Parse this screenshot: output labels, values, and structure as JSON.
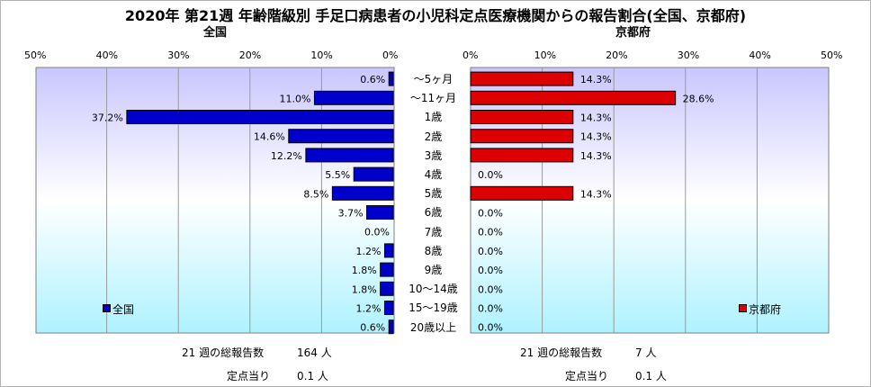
{
  "title": "2020年 第21週 年齢階級別 手足口病患者の小児科定点医療機関からの報告割合(全国、京都府)",
  "categories": [
    "～5ヶ月",
    "～11ヶ月",
    "1歳",
    "2歳",
    "3歳",
    "4歳",
    "5歳",
    "6歳",
    "7歳",
    "8歳",
    "9歳",
    "10～14歳",
    "15～19歳",
    "20歳以上"
  ],
  "left": {
    "subtitle": "全国",
    "ticks": [
      "50%",
      "40%",
      "30%",
      "20%",
      "10%",
      "0%"
    ],
    "legend": "全国",
    "color": "#0000cc"
  },
  "right": {
    "subtitle": "京都府",
    "ticks": [
      "0%",
      "10%",
      "20%",
      "30%",
      "40%",
      "50%"
    ],
    "legend": "京都府",
    "color": "#dd0000"
  },
  "footer": {
    "left_total_label": "21 週の総報告数",
    "left_total_value": "164 人",
    "left_per_label": "定点当り",
    "left_per_value": "0.1 人",
    "right_total_label": "21 週の総報告数",
    "right_total_value": "7 人",
    "right_per_label": "定点当り",
    "right_per_value": "0.1 人"
  },
  "chart_data": [
    {
      "type": "bar",
      "orientation": "horizontal",
      "title": "全国",
      "categories": [
        "～5ヶ月",
        "～11ヶ月",
        "1歳",
        "2歳",
        "3歳",
        "4歳",
        "5歳",
        "6歳",
        "7歳",
        "8歳",
        "9歳",
        "10～14歳",
        "15～19歳",
        "20歳以上"
      ],
      "values": [
        0.6,
        11.0,
        37.2,
        14.6,
        12.2,
        5.5,
        8.5,
        3.7,
        0.0,
        1.2,
        1.8,
        1.8,
        1.2,
        0.6
      ],
      "labels": [
        "0.6%",
        "11.0%",
        "37.2%",
        "14.6%",
        "12.2%",
        "5.5%",
        "8.5%",
        "3.7%",
        "0.0%",
        "1.2%",
        "1.8%",
        "1.8%",
        "1.2%",
        "0.6%"
      ],
      "xlim": [
        0,
        50
      ],
      "x_reversed": true,
      "unit": "%",
      "legend": "全国",
      "legend_position": "bottom-left",
      "color": "#0000cc"
    },
    {
      "type": "bar",
      "orientation": "horizontal",
      "title": "京都府",
      "categories": [
        "～5ヶ月",
        "～11ヶ月",
        "1歳",
        "2歳",
        "3歳",
        "4歳",
        "5歳",
        "6歳",
        "7歳",
        "8歳",
        "9歳",
        "10～14歳",
        "15～19歳",
        "20歳以上"
      ],
      "values": [
        14.3,
        28.6,
        14.3,
        14.3,
        14.3,
        0.0,
        14.3,
        0.0,
        0.0,
        0.0,
        0.0,
        0.0,
        0.0,
        0.0
      ],
      "labels": [
        "14.3%",
        "28.6%",
        "14.3%",
        "14.3%",
        "14.3%",
        "0.0%",
        "14.3%",
        "0.0%",
        "0.0%",
        "0.0%",
        "0.0%",
        "0.0%",
        "0.0%",
        "0.0%"
      ],
      "xlim": [
        0,
        50
      ],
      "unit": "%",
      "legend": "京都府",
      "legend_position": "bottom-right",
      "color": "#dd0000"
    }
  ]
}
